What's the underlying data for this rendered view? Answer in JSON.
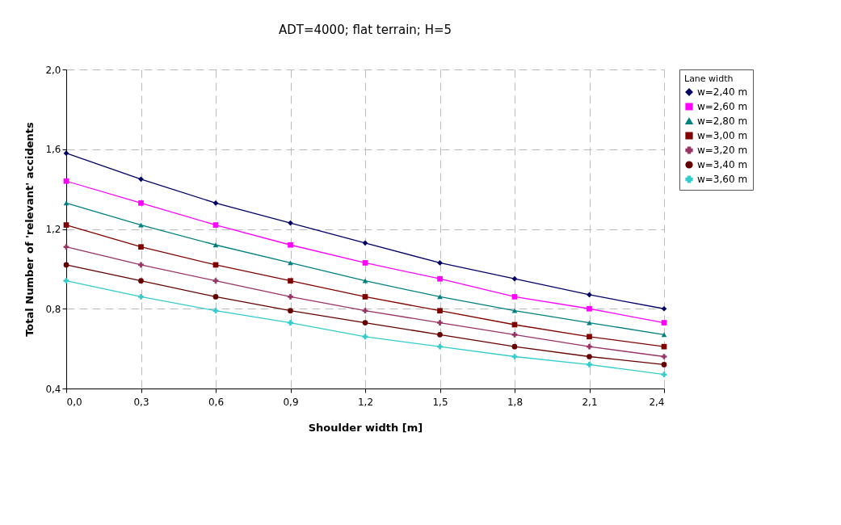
{
  "chart_data": {
    "type": "line",
    "title": "ADT=4000; flat terrain; H=5",
    "xlabel": "Shoulder width [m]",
    "ylabel": "Total Number of 'relevant' accidents",
    "legend_title": "Lane width",
    "x": [
      0,
      0.3,
      0.6,
      0.9,
      1.2,
      1.5,
      1.8,
      2.1,
      2.4
    ],
    "xlim": [
      0,
      2.4
    ],
    "xticks": [
      {
        "value": 0,
        "label": "0,0"
      },
      {
        "value": 0.3,
        "label": "0,3"
      },
      {
        "value": 0.6,
        "label": "0,6"
      },
      {
        "value": 0.9,
        "label": "0,9"
      },
      {
        "value": 1.2,
        "label": "1,2"
      },
      {
        "value": 1.5,
        "label": "1,5"
      },
      {
        "value": 1.8,
        "label": "1,8"
      },
      {
        "value": 2.1,
        "label": "2,1"
      },
      {
        "value": 2.4,
        "label": "2,4"
      }
    ],
    "ylim": [
      0.4,
      2.0
    ],
    "yticks": [
      {
        "value": 0.4,
        "label": "0,4"
      },
      {
        "value": 0.8,
        "label": "0,8"
      },
      {
        "value": 1.2,
        "label": "1,2"
      },
      {
        "value": 1.6,
        "label": "1,6"
      },
      {
        "value": 2.0,
        "label": "2,0"
      }
    ],
    "grid": true,
    "legend": "right",
    "line_style": "solid",
    "series": [
      {
        "name": "w=2,40 m",
        "color": "#000066",
        "marker": "diamond",
        "values": [
          1.58,
          1.45,
          1.33,
          1.23,
          1.13,
          1.03,
          0.95,
          0.87,
          0.8
        ]
      },
      {
        "name": "w=2,60 m",
        "color": "#ff00ff",
        "marker": "square",
        "values": [
          1.44,
          1.33,
          1.22,
          1.12,
          1.03,
          0.95,
          0.86,
          0.8,
          0.73
        ]
      },
      {
        "name": "w=2,80 m",
        "color": "#008080",
        "marker": "triangle",
        "values": [
          1.33,
          1.22,
          1.12,
          1.03,
          0.94,
          0.86,
          0.79,
          0.73,
          0.67
        ]
      },
      {
        "name": "w=3,00 m",
        "color": "#800000",
        "marker": "square",
        "values": [
          1.22,
          1.11,
          1.02,
          0.94,
          0.86,
          0.79,
          0.72,
          0.66,
          0.61
        ]
      },
      {
        "name": "w=3,20 m",
        "color": "#993366",
        "marker": "cross",
        "values": [
          1.11,
          1.02,
          0.94,
          0.86,
          0.79,
          0.73,
          0.67,
          0.61,
          0.56
        ]
      },
      {
        "name": "w=3,40 m",
        "color": "#660000",
        "marker": "circle",
        "values": [
          1.02,
          0.94,
          0.86,
          0.79,
          0.73,
          0.67,
          0.61,
          0.56,
          0.52
        ]
      },
      {
        "name": "w=3,60 m",
        "color": "#33cccc",
        "marker": "cross",
        "values": [
          0.94,
          0.86,
          0.79,
          0.73,
          0.66,
          0.61,
          0.56,
          0.52,
          0.47
        ]
      }
    ]
  }
}
